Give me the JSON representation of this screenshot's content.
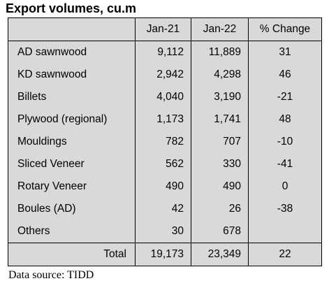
{
  "title": "Export volumes, cu.m",
  "columns": [
    "",
    "Jan-21",
    "Jan-22",
    "% Change"
  ],
  "rows": [
    {
      "label": "AD sawnwood",
      "jan21": "9,112",
      "jan22": "11,889",
      "change": "31"
    },
    {
      "label": "KD sawnwood",
      "jan21": "2,942",
      "jan22": "4,298",
      "change": "46"
    },
    {
      "label": "Billets",
      "jan21": "4,040",
      "jan22": "3,190",
      "change": "-21"
    },
    {
      "label": "Plywood (regional)",
      "jan21": "1,173",
      "jan22": "1,741",
      "change": "48"
    },
    {
      "label": "Mouldings",
      "jan21": "782",
      "jan22": "707",
      "change": "-10"
    },
    {
      "label": "Sliced Veneer",
      "jan21": "562",
      "jan22": "330",
      "change": "-41"
    },
    {
      "label": "Rotary Veneer",
      "jan21": "490",
      "jan22": "490",
      "change": "0"
    },
    {
      "label": "Boules (AD)",
      "jan21": "42",
      "jan22": "26",
      "change": "-38"
    },
    {
      "label": "Others",
      "jan21": "30",
      "jan22": "678",
      "change": ""
    }
  ],
  "total": {
    "label": "Total",
    "jan21": "19,173",
    "jan22": "23,349",
    "change": "22"
  },
  "source": "Data source: TIDD"
}
